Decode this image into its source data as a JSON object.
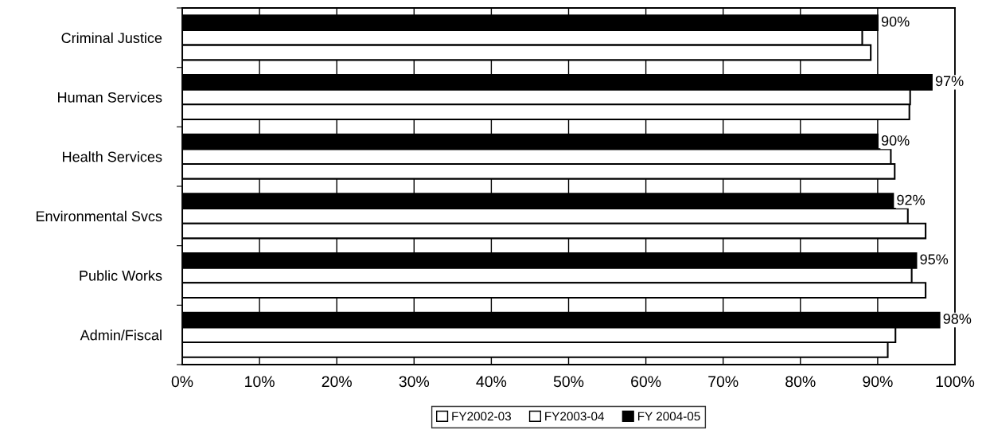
{
  "chart_data": {
    "type": "bar",
    "orientation": "horizontal",
    "categories": [
      "Criminal Justice",
      "Human Services",
      "Health Services",
      "Environmental Svcs",
      "Public Works",
      "Admin/Fiscal"
    ],
    "series": [
      {
        "name": "FY 2004-05",
        "color": "#000000",
        "values": [
          90,
          97,
          90,
          92,
          95,
          98
        ],
        "value_labels": [
          "90%",
          "97%",
          "90%",
          "92%",
          "95%",
          "98%"
        ]
      },
      {
        "name": "FY2003-04",
        "color": "#ffffff",
        "values": [
          88.0,
          94.2,
          91.7,
          93.9,
          94.4,
          92.3
        ]
      },
      {
        "name": "FY2002-03",
        "color": "#ffffff",
        "values": [
          89.1,
          94.1,
          92.2,
          96.2,
          96.2,
          91.3
        ]
      }
    ],
    "xlim": [
      0,
      100
    ],
    "xticks": [
      {
        "value": 0,
        "label": "0%"
      },
      {
        "value": 10,
        "label": "10%"
      },
      {
        "value": 20,
        "label": "20%"
      },
      {
        "value": 30,
        "label": "30%"
      },
      {
        "value": 40,
        "label": "40%"
      },
      {
        "value": 50,
        "label": "50%"
      },
      {
        "value": 60,
        "label": "60%"
      },
      {
        "value": 70,
        "label": "70%"
      },
      {
        "value": 80,
        "label": "80%"
      },
      {
        "value": 90,
        "label": "90%"
      },
      {
        "value": 100,
        "label": "100%"
      }
    ],
    "grid": "x",
    "legend": "bottom"
  }
}
